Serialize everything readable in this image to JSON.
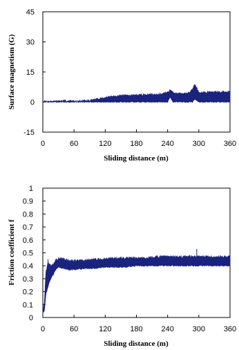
{
  "chart_data": [
    {
      "type": "line",
      "title": "",
      "xlabel": "Sliding distance (m)",
      "ylabel": "Surface magnetism (G)",
      "xlim": [
        0,
        360
      ],
      "ylim": [
        -15,
        45
      ],
      "xticks": [
        0,
        60,
        120,
        180,
        240,
        300,
        360
      ],
      "xtick_labels": [
        "0",
        "60",
        "120",
        "180",
        "240",
        "300",
        "360"
      ],
      "yticks": [
        -15,
        0,
        15,
        30,
        45
      ],
      "ytick_labels": [
        "-15",
        "0",
        "15",
        "30",
        "45"
      ],
      "grid": false,
      "legend": "none",
      "line_color": "#1a237e",
      "series": [
        {
          "x": [
            0,
            20,
            40,
            60,
            80,
            90,
            100,
            110,
            120,
            130,
            140,
            150,
            160,
            170,
            180,
            190,
            200,
            210,
            220,
            230,
            240,
            245,
            250,
            260,
            270,
            280,
            288,
            292,
            300,
            310,
            320,
            330,
            340,
            350,
            360
          ],
          "y_upper": [
            0.3,
            0.4,
            0.6,
            0.5,
            0.6,
            0.8,
            1.3,
            1.8,
            2.2,
            2.6,
            3.0,
            3.2,
            3.3,
            3.4,
            3.5,
            3.6,
            3.7,
            3.8,
            3.9,
            4.0,
            5.0,
            6.0,
            4.8,
            4.2,
            4.1,
            4.5,
            6.5,
            9.0,
            5.0,
            4.8,
            5.0,
            5.1,
            5.0,
            5.2,
            5.0
          ],
          "y_lower": [
            0.0,
            0.0,
            0.0,
            0.0,
            0.0,
            0.0,
            0.0,
            0.0,
            0.0,
            0.0,
            0.0,
            0.0,
            0.0,
            0.0,
            0.0,
            0.0,
            0.0,
            0.0,
            0.0,
            0.0,
            0.0,
            2.5,
            0.0,
            0.0,
            0.0,
            0.0,
            0.0,
            1.5,
            0.0,
            0.0,
            0.0,
            0.0,
            0.0,
            0.0,
            0.0
          ]
        }
      ]
    },
    {
      "type": "line",
      "title": "",
      "xlabel": "Sliding distance (m)",
      "ylabel": "Friction coefficient f",
      "xlim": [
        0,
        360
      ],
      "ylim": [
        0,
        1
      ],
      "xticks": [
        0,
        60,
        120,
        180,
        240,
        300,
        360
      ],
      "xtick_labels": [
        "0",
        "60",
        "120",
        "180",
        "240",
        "300",
        "360"
      ],
      "yticks": [
        0,
        0.1,
        0.2,
        0.3,
        0.4,
        0.5,
        0.6,
        0.7,
        0.8,
        0.9,
        1
      ],
      "ytick_labels": [
        "0",
        "0.1",
        "0.2",
        "0.3",
        "0.4",
        "0.5",
        "0.6",
        "0.7",
        "0.8",
        "0.9",
        "1"
      ],
      "grid": false,
      "legend": "none",
      "line_color": "#1a237e",
      "series": [
        {
          "x": [
            0,
            3,
            6,
            10,
            15,
            20,
            25,
            30,
            40,
            50,
            60,
            80,
            100,
            120,
            140,
            160,
            180,
            200,
            220,
            240,
            260,
            280,
            300,
            320,
            340,
            360
          ],
          "y_upper": [
            0.05,
            0.12,
            0.36,
            0.42,
            0.4,
            0.41,
            0.44,
            0.46,
            0.45,
            0.44,
            0.44,
            0.44,
            0.45,
            0.45,
            0.46,
            0.46,
            0.46,
            0.46,
            0.47,
            0.47,
            0.47,
            0.47,
            0.47,
            0.47,
            0.47,
            0.47
          ],
          "y_lower": [
            0.04,
            0.05,
            0.18,
            0.24,
            0.3,
            0.33,
            0.37,
            0.39,
            0.38,
            0.37,
            0.37,
            0.38,
            0.38,
            0.39,
            0.39,
            0.39,
            0.4,
            0.4,
            0.4,
            0.4,
            0.4,
            0.4,
            0.4,
            0.4,
            0.4,
            0.4
          ],
          "spikes": [
            {
              "x": 10,
              "y": 0.45
            },
            {
              "x": 296,
              "y": 0.53
            }
          ]
        }
      ]
    }
  ]
}
